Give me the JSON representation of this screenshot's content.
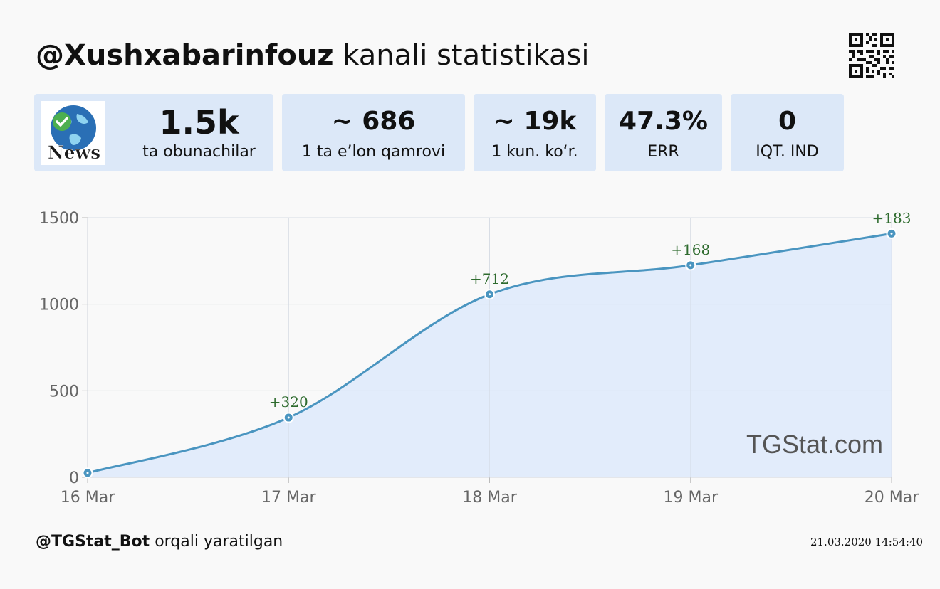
{
  "header": {
    "channel_handle": "@Xushxabarinfouz",
    "title_suffix": "kanali statistikasi"
  },
  "stats": [
    {
      "value": "1.5k",
      "label": "ta obunachilar"
    },
    {
      "value": "~ 686",
      "label": "1 ta e’lon qamrovi"
    },
    {
      "value": "~ 19k",
      "label": "1 kun. ko‘r."
    },
    {
      "value": "47.3%",
      "label": "ERR"
    },
    {
      "value": "0",
      "label": "IQT. IND"
    }
  ],
  "avatar_caption": "News",
  "watermark": "TGStat.com",
  "footer": {
    "bot_handle": "@TGStat_Bot",
    "suffix": "orqali yaratilgan",
    "timestamp": "21.03.2020 14:54:40"
  },
  "colors": {
    "line": "#4a95c0",
    "fill": "#dfeafb",
    "card_bg": "#dce8f8",
    "delta_label": "#2e6b2e"
  },
  "chart_data": {
    "type": "area",
    "categories": [
      "16 Mar",
      "17 Mar",
      "18 Mar",
      "19 Mar",
      "20 Mar"
    ],
    "values": [
      25,
      345,
      1057,
      1225,
      1408
    ],
    "deltas": [
      "",
      "+320",
      "+712",
      "+168",
      "+183"
    ],
    "yticks": [
      "0",
      "500",
      "1000",
      "1500"
    ],
    "ylim": [
      0,
      1500
    ],
    "grid": true
  }
}
